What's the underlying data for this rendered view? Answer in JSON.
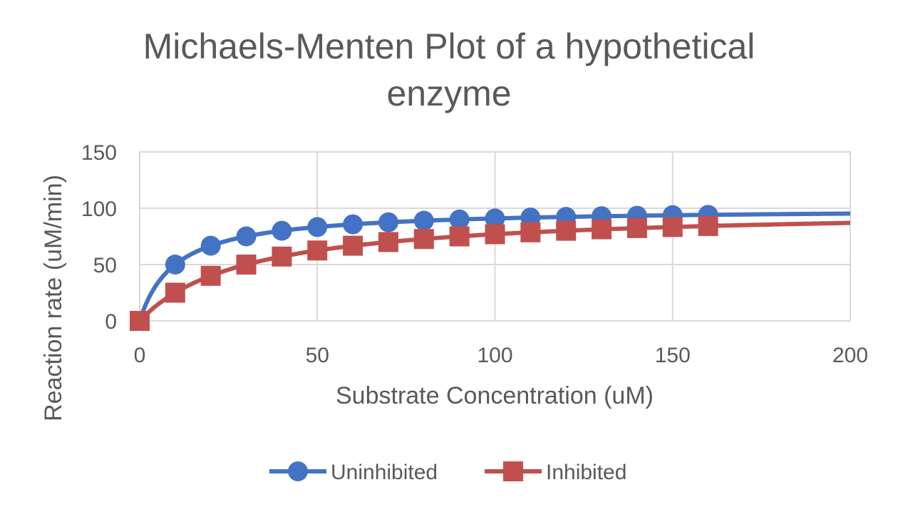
{
  "chart_data": {
    "type": "scatter",
    "title_lines": [
      "Michaels-Menten Plot of a hypothetical",
      "enzyme"
    ],
    "xlabel": "Substrate Concentration (uM)",
    "ylabel": "Reaction rate (uM/min)",
    "xlim": [
      0,
      200
    ],
    "ylim": [
      0,
      150
    ],
    "x_ticks": [
      "0",
      "50",
      "100",
      "150",
      "200"
    ],
    "y_ticks": [
      "0",
      "50",
      "100",
      "150"
    ],
    "grid": true,
    "legend_position": "bottom",
    "series": [
      {
        "name": "Uninhibited",
        "color": "#4472C4",
        "marker": "circle",
        "x": [
          0,
          10,
          20,
          30,
          40,
          50,
          60,
          70,
          80,
          90,
          100,
          110,
          120,
          130,
          140,
          150,
          160
        ],
        "y": [
          0,
          50,
          66.7,
          75,
          80,
          83.3,
          85.7,
          87.5,
          88.9,
          90,
          90.9,
          91.7,
          92.3,
          92.9,
          93.3,
          93.8,
          94.1
        ],
        "fit_curve": {
          "model": "michaelis-menten",
          "vmax": 100,
          "km": 10,
          "x_max": 200
        }
      },
      {
        "name": "Inhibited",
        "color": "#C0504D",
        "marker": "square",
        "x": [
          0,
          10,
          20,
          30,
          40,
          50,
          60,
          70,
          80,
          90,
          100,
          110,
          120,
          130,
          140,
          150,
          160
        ],
        "y": [
          0,
          25,
          40,
          50,
          57.1,
          62.5,
          66.7,
          70,
          72.7,
          75,
          76.9,
          78.6,
          80,
          81.3,
          82.4,
          83.3,
          84.2
        ],
        "fit_curve": {
          "model": "michaelis-menten",
          "vmax": 100,
          "km": 30,
          "x_max": 200
        }
      }
    ]
  }
}
